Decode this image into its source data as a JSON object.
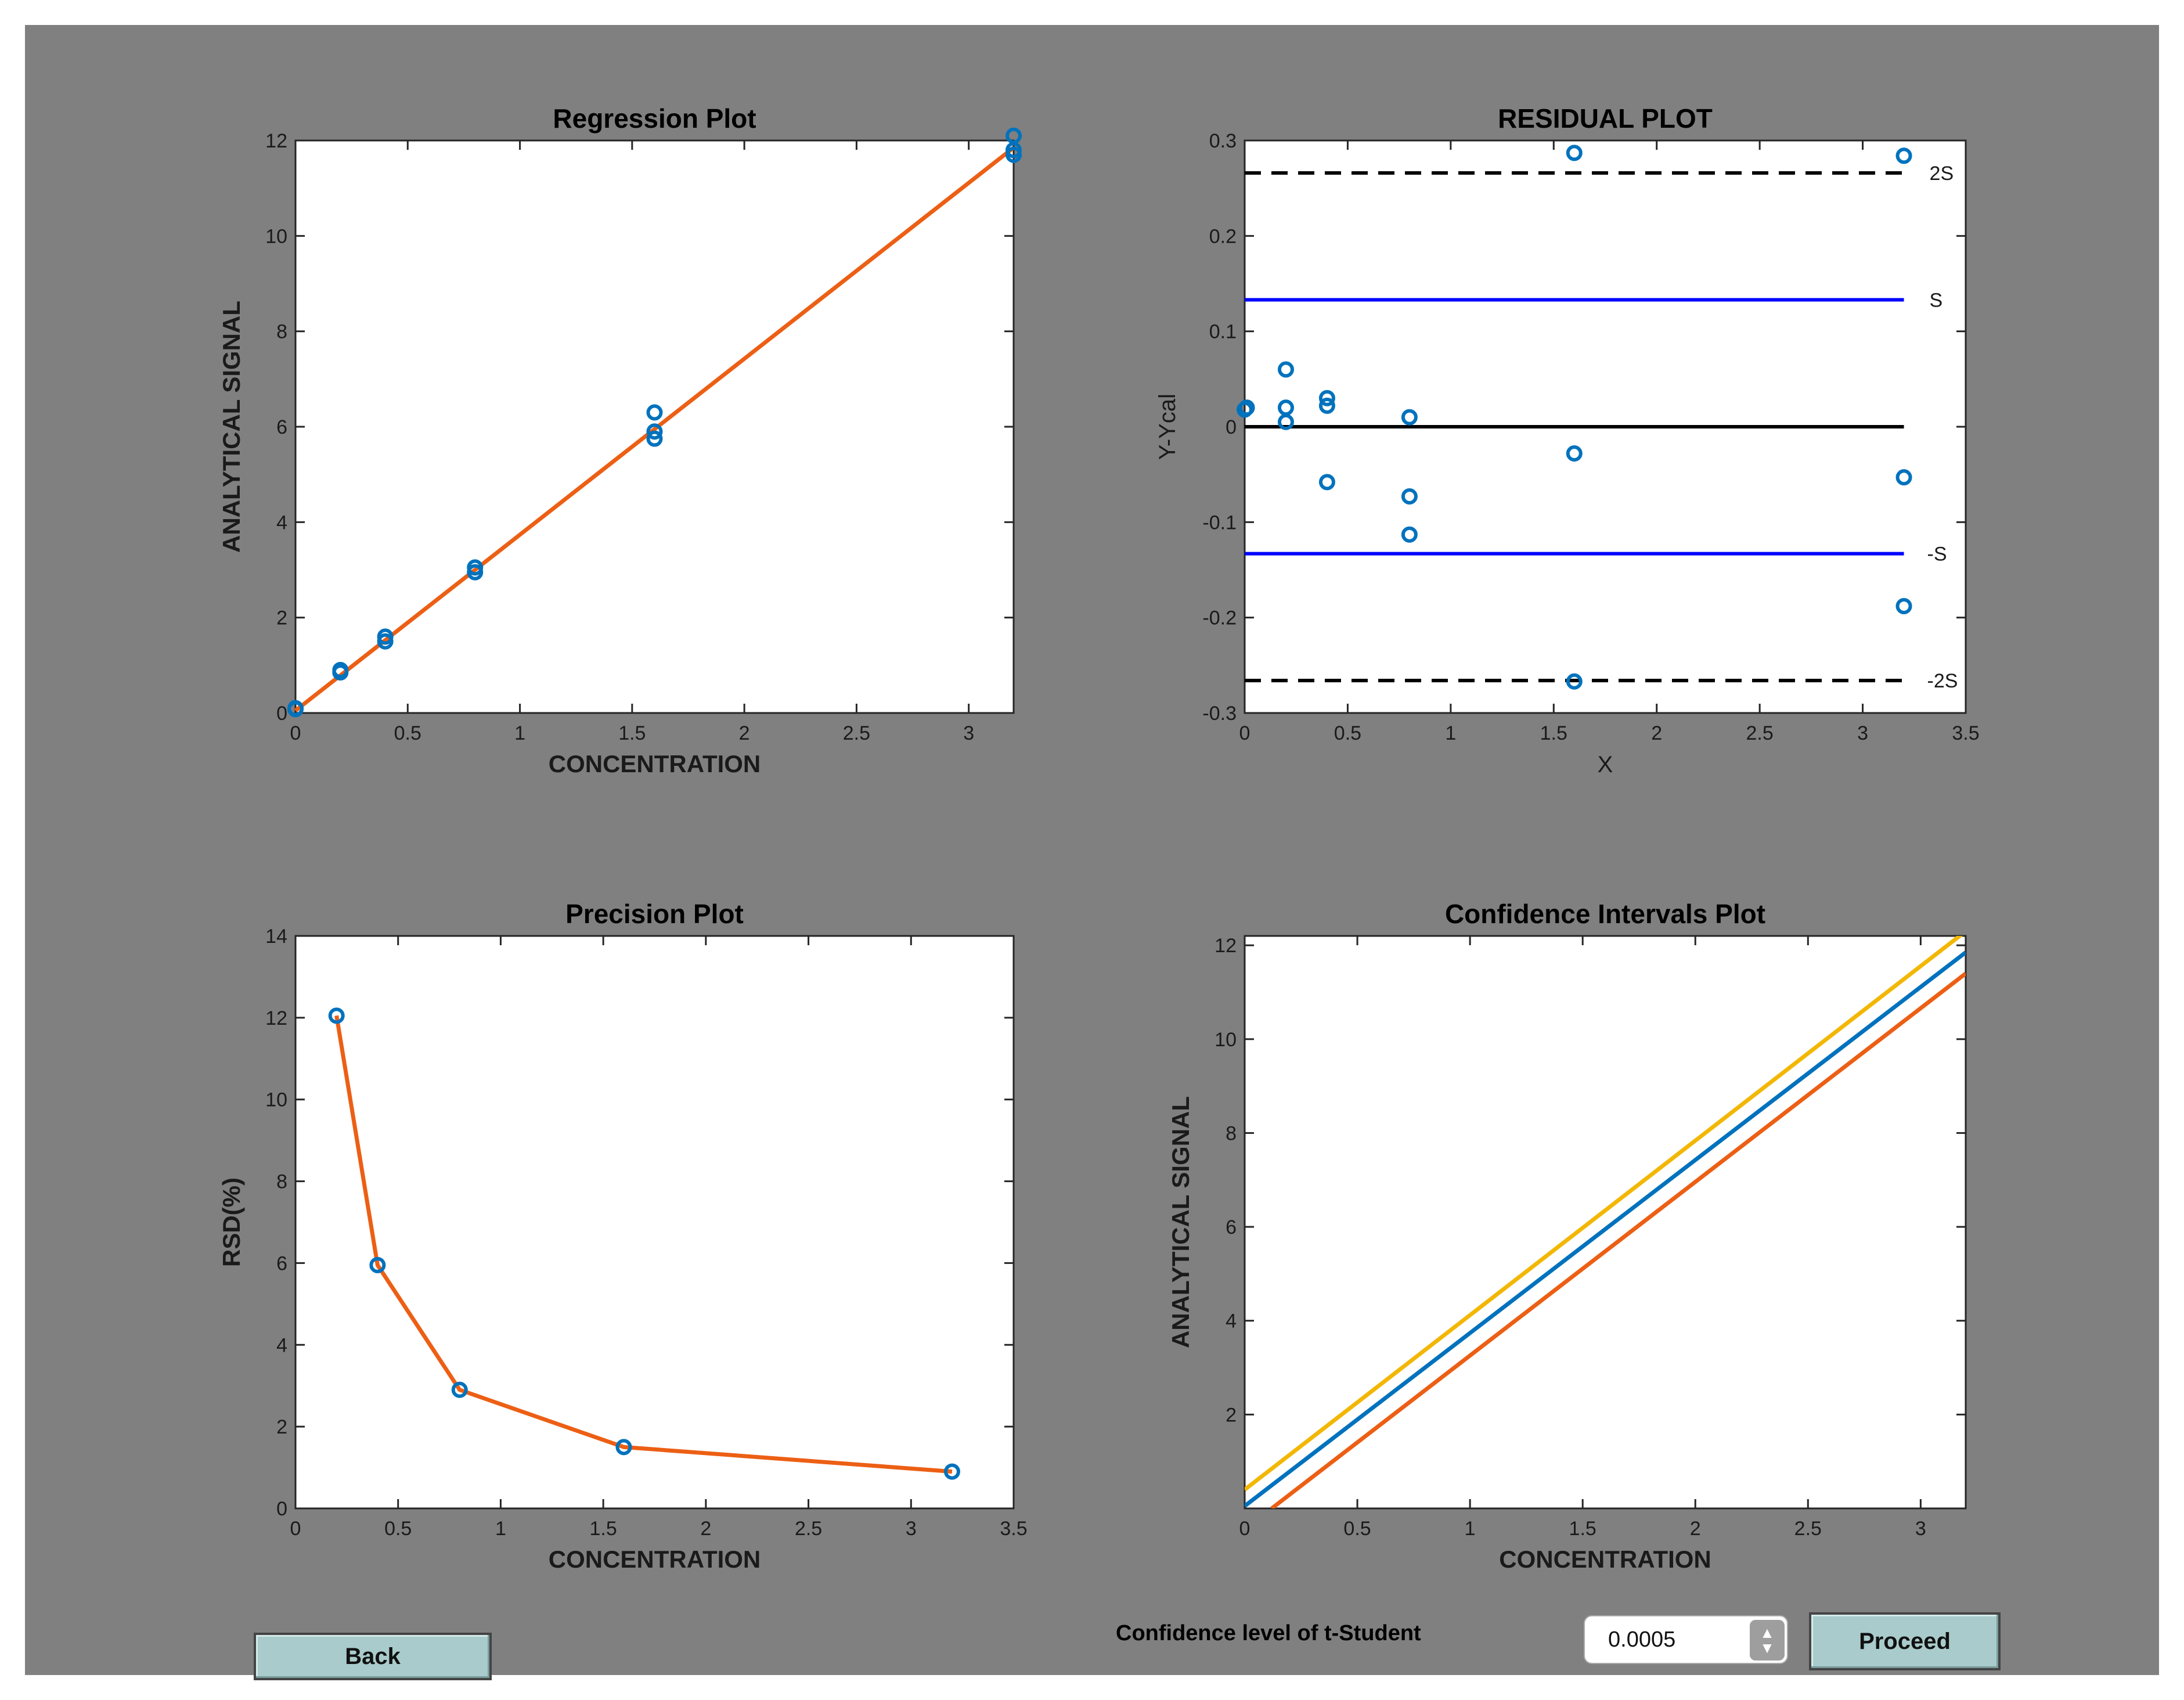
{
  "colors": {
    "background": "#808080",
    "marker": "#0072bd",
    "fit_line": "#ec5f14",
    "limit_s": "#0000ff",
    "ci_upper": "#f2b705",
    "ci_mid": "#0072bd",
    "ci_lower": "#ec5f14",
    "button": "#a9cbcb"
  },
  "controls": {
    "back_label": "Back",
    "proceed_label": "Proceed",
    "confidence_label": "Confidence level of t-Student",
    "confidence_value": "0.0005"
  },
  "chart_data": [
    {
      "id": "regression",
      "type": "scatter",
      "title": "Regression Plot",
      "xlabel": "CONCENTRATION",
      "ylabel": "ANALYTICAL SIGNAL",
      "xlim": [
        0,
        3.2
      ],
      "ylim": [
        0,
        12
      ],
      "xticks": [
        0,
        0.5,
        1,
        1.5,
        2,
        2.5,
        3
      ],
      "yticks": [
        0,
        2,
        4,
        6,
        8,
        10,
        12
      ],
      "xticklabels": [
        "0",
        "0.5",
        "1",
        "1.5",
        "2",
        "2.5",
        "3"
      ],
      "yticklabels": [
        "0",
        "2",
        "4",
        "6",
        "8",
        "10",
        "12"
      ],
      "points": [
        [
          0,
          0.08
        ],
        [
          0,
          0.1
        ],
        [
          0.2,
          0.85
        ],
        [
          0.2,
          0.9
        ],
        [
          0.4,
          1.5
        ],
        [
          0.4,
          1.6
        ],
        [
          0.8,
          2.95
        ],
        [
          0.8,
          3.05
        ],
        [
          1.6,
          5.75
        ],
        [
          1.6,
          5.9
        ],
        [
          1.6,
          6.3
        ],
        [
          3.2,
          11.7
        ],
        [
          3.2,
          11.8
        ],
        [
          3.2,
          12.1
        ]
      ],
      "fit_line": [
        [
          0,
          0.05
        ],
        [
          3.2,
          11.85
        ]
      ]
    },
    {
      "id": "residual",
      "type": "scatter",
      "title": "RESIDUAL PLOT",
      "xlabel": "X",
      "ylabel": "Y-Ycal",
      "xlim": [
        0,
        3.5
      ],
      "ylim": [
        -0.3,
        0.3
      ],
      "xticks": [
        0,
        0.5,
        1,
        1.5,
        2,
        2.5,
        3,
        3.5
      ],
      "yticks": [
        -0.3,
        -0.2,
        -0.1,
        0,
        0.1,
        0.2,
        0.3
      ],
      "xticklabels": [
        "0",
        "0.5",
        "1",
        "1.5",
        "2",
        "2.5",
        "3",
        "3.5"
      ],
      "yticklabels": [
        "-0.3",
        "-0.2",
        "-0.1",
        "0",
        "0.1",
        "0.2",
        "0.3"
      ],
      "points": [
        [
          0,
          0.018
        ],
        [
          0.01,
          0.02
        ],
        [
          0.2,
          0.06
        ],
        [
          0.2,
          0.02
        ],
        [
          0.2,
          0.005
        ],
        [
          0.4,
          0.03
        ],
        [
          0.4,
          0.022
        ],
        [
          0.4,
          -0.058
        ],
        [
          0.8,
          0.01
        ],
        [
          0.8,
          -0.073
        ],
        [
          0.8,
          -0.113
        ],
        [
          1.6,
          0.287
        ],
        [
          1.6,
          -0.028
        ],
        [
          1.6,
          -0.267
        ],
        [
          3.2,
          0.284
        ],
        [
          3.2,
          -0.053
        ],
        [
          3.2,
          -0.188
        ]
      ],
      "ref_lines": [
        {
          "y": 0.266,
          "label": "2S",
          "style": "dashed"
        },
        {
          "y": 0.133,
          "label": "S",
          "style": "solid-blue"
        },
        {
          "y": 0,
          "label": "",
          "style": "solid-black"
        },
        {
          "y": -0.133,
          "label": "-S",
          "style": "solid-blue"
        },
        {
          "y": -0.266,
          "label": "-2S",
          "style": "dashed"
        }
      ],
      "ref_xmax": 3.2
    },
    {
      "id": "precision",
      "type": "line",
      "title": "Precision Plot",
      "xlabel": "CONCENTRATION",
      "ylabel": "RSD(%)",
      "xlim": [
        0,
        3.5
      ],
      "ylim": [
        0,
        14
      ],
      "xticks": [
        0,
        0.5,
        1,
        1.5,
        2,
        2.5,
        3,
        3.5
      ],
      "yticks": [
        0,
        2,
        4,
        6,
        8,
        10,
        12,
        14
      ],
      "xticklabels": [
        "0",
        "0.5",
        "1",
        "1.5",
        "2",
        "2.5",
        "3",
        "3.5"
      ],
      "yticklabels": [
        "0",
        "2",
        "4",
        "6",
        "8",
        "10",
        "12",
        "14"
      ],
      "x": [
        0.2,
        0.4,
        0.8,
        1.6,
        3.2
      ],
      "y": [
        12.05,
        5.95,
        2.9,
        1.5,
        0.9
      ]
    },
    {
      "id": "confidence",
      "type": "line",
      "title": "Confidence Intervals Plot",
      "xlabel": "CONCENTRATION",
      "ylabel": "ANALYTICAL SIGNAL",
      "xlim": [
        0,
        3.2
      ],
      "ylim": [
        0,
        12.2
      ],
      "xticks": [
        0,
        0.5,
        1,
        1.5,
        2,
        2.5,
        3
      ],
      "yticks": [
        2,
        4,
        6,
        8,
        10,
        12
      ],
      "xticklabels": [
        "0",
        "0.5",
        "1",
        "1.5",
        "2",
        "2.5",
        "3"
      ],
      "yticklabels": [
        "2",
        "4",
        "6",
        "8",
        "10",
        "12"
      ],
      "series": [
        {
          "name": "upper",
          "x": [
            0,
            3.2
          ],
          "y": [
            0.4,
            12.3
          ]
        },
        {
          "name": "fit",
          "x": [
            0,
            3.2
          ],
          "y": [
            0.05,
            11.85
          ]
        },
        {
          "name": "lower",
          "x": [
            0.12,
            3.2
          ],
          "y": [
            0,
            11.4
          ]
        }
      ]
    }
  ]
}
